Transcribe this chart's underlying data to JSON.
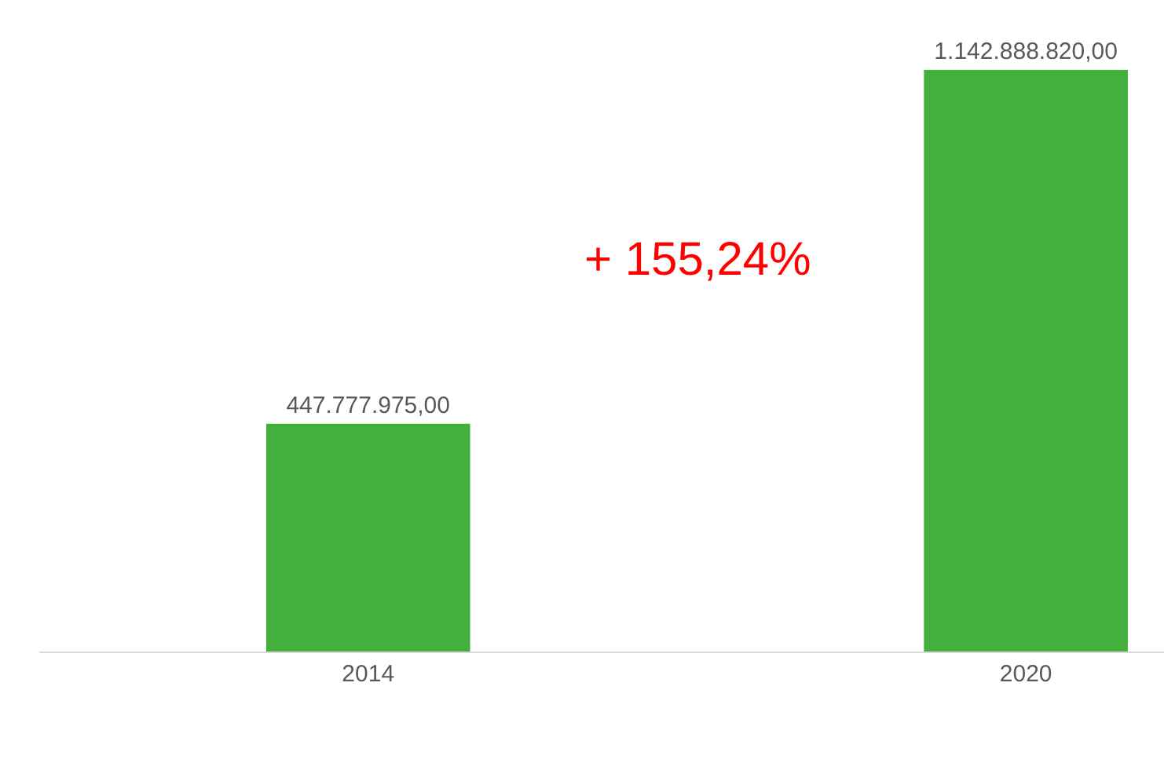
{
  "chart_data": {
    "type": "bar",
    "categories": [
      "2014",
      "2020"
    ],
    "values": [
      447777975,
      1142888820
    ],
    "value_labels": [
      "447.777.975,00",
      "1.142.888.820,00"
    ],
    "color": "#43b03b",
    "annotations": [
      "+ 155,24%"
    ]
  }
}
